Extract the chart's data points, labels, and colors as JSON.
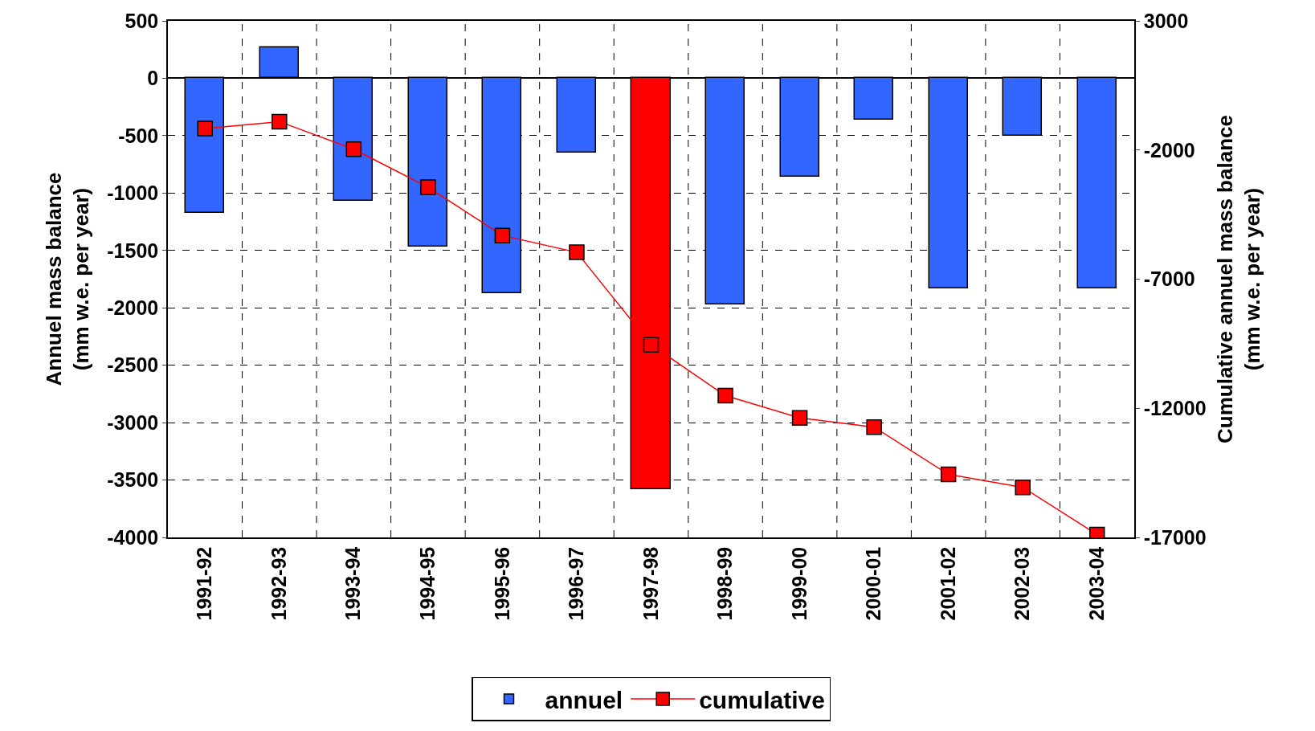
{
  "chart_data": {
    "type": "bar",
    "ylabel": "Annuel mass balance\n(mm w.e. per year)",
    "y2label": "Cumulative annuel mass balance\n(mm w.e. per year)",
    "categories": [
      "1991-92",
      "1992-93",
      "1993-94",
      "1994-95",
      "1995-96",
      "1996-97",
      "1997-98",
      "1998-99",
      "1999-00",
      "2000-01",
      "2001-02",
      "2002-03",
      "2003-04"
    ],
    "series": [
      {
        "name": "annuel",
        "color": "#3366ff",
        "colors": [
          "#3366ff",
          "#3366ff",
          "#3366ff",
          "#3366ff",
          "#3366ff",
          "#3366ff",
          "#ff0000",
          "#3366ff",
          "#3366ff",
          "#3366ff",
          "#3366ff",
          "#3366ff",
          "#3366ff"
        ],
        "values": [
          -1170,
          270,
          -1070,
          -1470,
          -1870,
          -650,
          -3580,
          -1970,
          -860,
          -360,
          -1830,
          -500,
          -1830
        ]
      },
      {
        "name": "cumulative",
        "type": "line",
        "axis": "y2",
        "color": "#ff0000",
        "values": [
          -1170,
          -900,
          -1970,
          -3440,
          -5310,
          -5960,
          -9540,
          -11510,
          -12370,
          -12730,
          -14560,
          -15060,
          -16890
        ]
      }
    ],
    "ylim": [
      -4000,
      500
    ],
    "yticks": [
      -4000,
      -3500,
      -3000,
      -2500,
      -2000,
      -1500,
      -1000,
      -500,
      0,
      500
    ],
    "y2lim": [
      -17000,
      3000
    ],
    "y2ticks": [
      -17000,
      -12000,
      -7000,
      -2000,
      3000
    ],
    "grid": true,
    "legend": "bottom",
    "marker": "square",
    "line_style": "solid"
  }
}
